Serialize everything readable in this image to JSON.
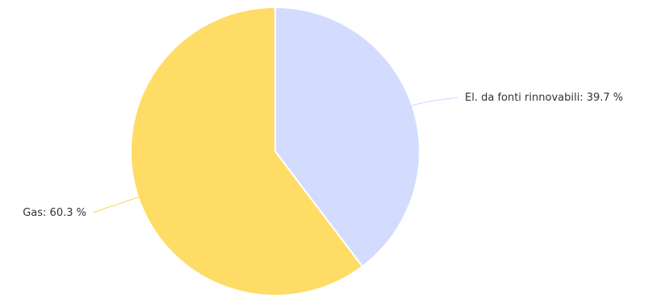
{
  "chart_data": {
    "type": "pie",
    "title": "",
    "start_angle_deg": 0,
    "direction": "clockwise",
    "slices": [
      {
        "label": "El. da fonti rinnovabili",
        "value": 39.7,
        "display": "El. da fonti rinnovabili: 39.7 %",
        "color": "#d3dcfe"
      },
      {
        "label": "Gas",
        "value": 60.3,
        "display": "Gas: 60.3 %",
        "color": "#fedc65"
      }
    ]
  }
}
